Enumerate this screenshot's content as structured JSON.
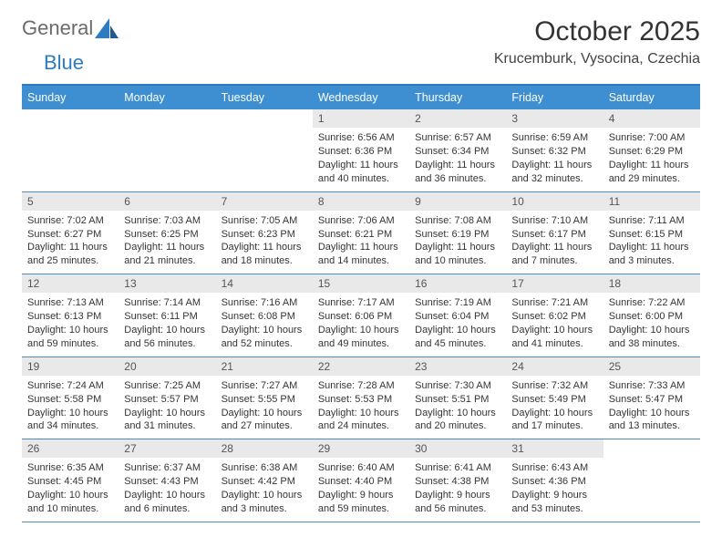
{
  "logo": {
    "text_a": "General",
    "text_b": "Blue"
  },
  "title": "October 2025",
  "location": "Krucemburk, Vysocina, Czechia",
  "colors": {
    "header_bar": "#3d8fd1",
    "header_border": "#2f7bbf",
    "week_divider": "#4a8bc5",
    "daynum_bg": "#e9e9e9",
    "logo_gray": "#6b6b6b",
    "logo_blue": "#2f7bbf"
  },
  "day_names": [
    "Sunday",
    "Monday",
    "Tuesday",
    "Wednesday",
    "Thursday",
    "Friday",
    "Saturday"
  ],
  "weeks": [
    [
      {
        "n": "",
        "lines": []
      },
      {
        "n": "",
        "lines": []
      },
      {
        "n": "",
        "lines": []
      },
      {
        "n": "1",
        "lines": [
          "Sunrise: 6:56 AM",
          "Sunset: 6:36 PM",
          "Daylight: 11 hours and 40 minutes."
        ]
      },
      {
        "n": "2",
        "lines": [
          "Sunrise: 6:57 AM",
          "Sunset: 6:34 PM",
          "Daylight: 11 hours and 36 minutes."
        ]
      },
      {
        "n": "3",
        "lines": [
          "Sunrise: 6:59 AM",
          "Sunset: 6:32 PM",
          "Daylight: 11 hours and 32 minutes."
        ]
      },
      {
        "n": "4",
        "lines": [
          "Sunrise: 7:00 AM",
          "Sunset: 6:29 PM",
          "Daylight: 11 hours and 29 minutes."
        ]
      }
    ],
    [
      {
        "n": "5",
        "lines": [
          "Sunrise: 7:02 AM",
          "Sunset: 6:27 PM",
          "Daylight: 11 hours and 25 minutes."
        ]
      },
      {
        "n": "6",
        "lines": [
          "Sunrise: 7:03 AM",
          "Sunset: 6:25 PM",
          "Daylight: 11 hours and 21 minutes."
        ]
      },
      {
        "n": "7",
        "lines": [
          "Sunrise: 7:05 AM",
          "Sunset: 6:23 PM",
          "Daylight: 11 hours and 18 minutes."
        ]
      },
      {
        "n": "8",
        "lines": [
          "Sunrise: 7:06 AM",
          "Sunset: 6:21 PM",
          "Daylight: 11 hours and 14 minutes."
        ]
      },
      {
        "n": "9",
        "lines": [
          "Sunrise: 7:08 AM",
          "Sunset: 6:19 PM",
          "Daylight: 11 hours and 10 minutes."
        ]
      },
      {
        "n": "10",
        "lines": [
          "Sunrise: 7:10 AM",
          "Sunset: 6:17 PM",
          "Daylight: 11 hours and 7 minutes."
        ]
      },
      {
        "n": "11",
        "lines": [
          "Sunrise: 7:11 AM",
          "Sunset: 6:15 PM",
          "Daylight: 11 hours and 3 minutes."
        ]
      }
    ],
    [
      {
        "n": "12",
        "lines": [
          "Sunrise: 7:13 AM",
          "Sunset: 6:13 PM",
          "Daylight: 10 hours and 59 minutes."
        ]
      },
      {
        "n": "13",
        "lines": [
          "Sunrise: 7:14 AM",
          "Sunset: 6:11 PM",
          "Daylight: 10 hours and 56 minutes."
        ]
      },
      {
        "n": "14",
        "lines": [
          "Sunrise: 7:16 AM",
          "Sunset: 6:08 PM",
          "Daylight: 10 hours and 52 minutes."
        ]
      },
      {
        "n": "15",
        "lines": [
          "Sunrise: 7:17 AM",
          "Sunset: 6:06 PM",
          "Daylight: 10 hours and 49 minutes."
        ]
      },
      {
        "n": "16",
        "lines": [
          "Sunrise: 7:19 AM",
          "Sunset: 6:04 PM",
          "Daylight: 10 hours and 45 minutes."
        ]
      },
      {
        "n": "17",
        "lines": [
          "Sunrise: 7:21 AM",
          "Sunset: 6:02 PM",
          "Daylight: 10 hours and 41 minutes."
        ]
      },
      {
        "n": "18",
        "lines": [
          "Sunrise: 7:22 AM",
          "Sunset: 6:00 PM",
          "Daylight: 10 hours and 38 minutes."
        ]
      }
    ],
    [
      {
        "n": "19",
        "lines": [
          "Sunrise: 7:24 AM",
          "Sunset: 5:58 PM",
          "Daylight: 10 hours and 34 minutes."
        ]
      },
      {
        "n": "20",
        "lines": [
          "Sunrise: 7:25 AM",
          "Sunset: 5:57 PM",
          "Daylight: 10 hours and 31 minutes."
        ]
      },
      {
        "n": "21",
        "lines": [
          "Sunrise: 7:27 AM",
          "Sunset: 5:55 PM",
          "Daylight: 10 hours and 27 minutes."
        ]
      },
      {
        "n": "22",
        "lines": [
          "Sunrise: 7:28 AM",
          "Sunset: 5:53 PM",
          "Daylight: 10 hours and 24 minutes."
        ]
      },
      {
        "n": "23",
        "lines": [
          "Sunrise: 7:30 AM",
          "Sunset: 5:51 PM",
          "Daylight: 10 hours and 20 minutes."
        ]
      },
      {
        "n": "24",
        "lines": [
          "Sunrise: 7:32 AM",
          "Sunset: 5:49 PM",
          "Daylight: 10 hours and 17 minutes."
        ]
      },
      {
        "n": "25",
        "lines": [
          "Sunrise: 7:33 AM",
          "Sunset: 5:47 PM",
          "Daylight: 10 hours and 13 minutes."
        ]
      }
    ],
    [
      {
        "n": "26",
        "lines": [
          "Sunrise: 6:35 AM",
          "Sunset: 4:45 PM",
          "Daylight: 10 hours and 10 minutes."
        ]
      },
      {
        "n": "27",
        "lines": [
          "Sunrise: 6:37 AM",
          "Sunset: 4:43 PM",
          "Daylight: 10 hours and 6 minutes."
        ]
      },
      {
        "n": "28",
        "lines": [
          "Sunrise: 6:38 AM",
          "Sunset: 4:42 PM",
          "Daylight: 10 hours and 3 minutes."
        ]
      },
      {
        "n": "29",
        "lines": [
          "Sunrise: 6:40 AM",
          "Sunset: 4:40 PM",
          "Daylight: 9 hours and 59 minutes."
        ]
      },
      {
        "n": "30",
        "lines": [
          "Sunrise: 6:41 AM",
          "Sunset: 4:38 PM",
          "Daylight: 9 hours and 56 minutes."
        ]
      },
      {
        "n": "31",
        "lines": [
          "Sunrise: 6:43 AM",
          "Sunset: 4:36 PM",
          "Daylight: 9 hours and 53 minutes."
        ]
      },
      {
        "n": "",
        "lines": []
      }
    ]
  ]
}
